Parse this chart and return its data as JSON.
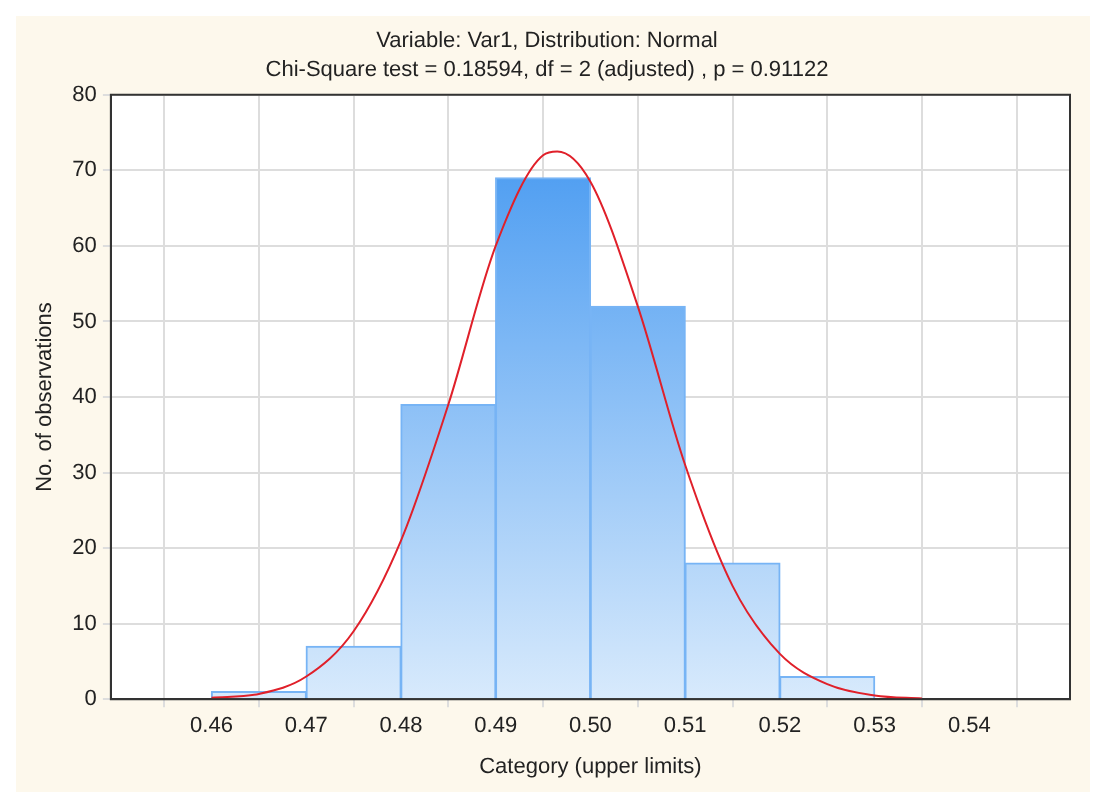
{
  "chart_data": {
    "type": "histogram",
    "title": "Variable: Var1, Distribution: Normal",
    "subtitle": "Chi-Square test = 0.18594, df = 2 (adjusted) , p = 0.91122",
    "xlabel": "Category (upper limits)",
    "ylabel": "No. of observations",
    "bins": [
      0.46,
      0.47,
      0.48,
      0.49,
      0.5,
      0.51,
      0.52,
      0.53
    ],
    "series": [
      {
        "color": "#3d94f0",
        "values": [
          1,
          7,
          39,
          69,
          52,
          18,
          3
        ]
      },
      {
        "type": "line",
        "color": "#e0202a",
        "x": [
          0.46,
          0.465,
          0.47,
          0.475,
          0.48,
          0.485,
          0.49,
          0.495,
          0.4965,
          0.5,
          0.505,
          0.51,
          0.515,
          0.52,
          0.525,
          0.53,
          0.535
        ],
        "values": [
          0.2,
          0.7,
          3,
          9,
          21,
          39,
          60,
          72,
          72.5,
          68.5,
          52,
          31,
          15,
          6,
          2,
          0.5,
          0.1
        ]
      }
    ],
    "xlim": [
      0.455,
      0.545
    ],
    "xticks": [
      0.46,
      0.47,
      0.48,
      0.49,
      {
        "value": 0.5,
        "label": "0.50"
      },
      0.51,
      0.52,
      0.53,
      0.54
    ],
    "ylim": [
      0,
      80
    ],
    "yticks": [
      0,
      10,
      20,
      30,
      40,
      50,
      60,
      70,
      80
    ],
    "grid": true,
    "legend": false,
    "marker": "none",
    "line_style": "solid"
  }
}
